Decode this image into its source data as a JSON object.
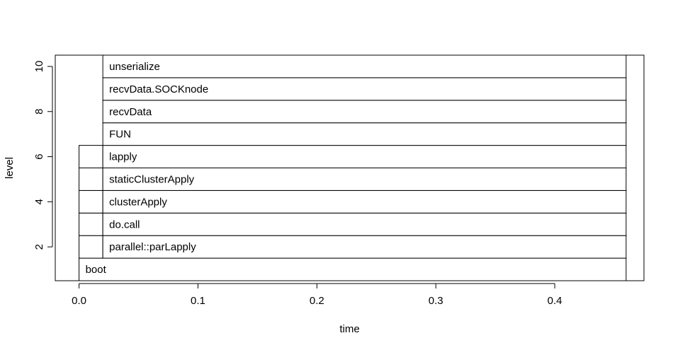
{
  "chart_data": {
    "type": "flame-graph",
    "title": "",
    "xlabel": "time",
    "ylabel": "level",
    "xlim": [
      -0.02,
      0.475
    ],
    "ylim": [
      0.5,
      10.5
    ],
    "x_ticks": [
      0.0,
      0.1,
      0.2,
      0.3,
      0.4
    ],
    "x_tick_labels": [
      "0.0",
      "0.1",
      "0.2",
      "0.3",
      "0.4"
    ],
    "y_ticks": [
      2,
      4,
      6,
      8,
      10
    ],
    "y_tick_labels": [
      "2",
      "4",
      "6",
      "8",
      "10"
    ],
    "grid": false,
    "legend": "none",
    "colors": {
      "rect_fill": "#ffffff",
      "rect_stroke": "#000000",
      "axis": "#000000"
    },
    "frames": [
      {
        "label": "boot",
        "start": 0.0,
        "end": 0.46,
        "level": 1
      },
      {
        "label": "",
        "start": 0.0,
        "end": 0.02,
        "level": 2
      },
      {
        "label": "parallel::parLapply",
        "start": 0.02,
        "end": 0.46,
        "level": 2
      },
      {
        "label": "",
        "start": 0.0,
        "end": 0.02,
        "level": 3
      },
      {
        "label": "do.call",
        "start": 0.02,
        "end": 0.46,
        "level": 3
      },
      {
        "label": "",
        "start": 0.0,
        "end": 0.02,
        "level": 4
      },
      {
        "label": "clusterApply",
        "start": 0.02,
        "end": 0.46,
        "level": 4
      },
      {
        "label": "",
        "start": 0.0,
        "end": 0.02,
        "level": 5
      },
      {
        "label": "staticClusterApply",
        "start": 0.02,
        "end": 0.46,
        "level": 5
      },
      {
        "label": "",
        "start": 0.0,
        "end": 0.02,
        "level": 6
      },
      {
        "label": "lapply",
        "start": 0.02,
        "end": 0.46,
        "level": 6
      },
      {
        "label": "FUN",
        "start": 0.02,
        "end": 0.46,
        "level": 7
      },
      {
        "label": "recvData",
        "start": 0.02,
        "end": 0.46,
        "level": 8
      },
      {
        "label": "recvData.SOCKnode",
        "start": 0.02,
        "end": 0.46,
        "level": 9
      },
      {
        "label": "unserialize",
        "start": 0.02,
        "end": 0.46,
        "level": 10
      }
    ]
  }
}
